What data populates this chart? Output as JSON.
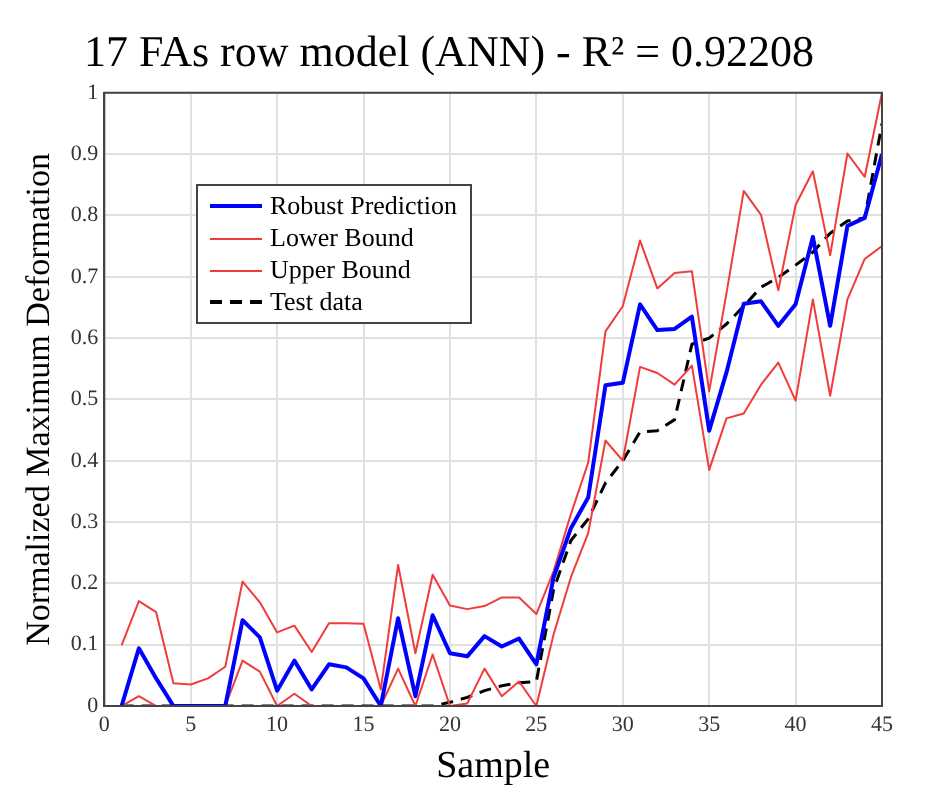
{
  "chart_data": {
    "type": "line",
    "title": "17 FAs row model (ANN) - R² = 0.92208",
    "xlabel": "Sample",
    "ylabel": "Normalized Maximum Deformation",
    "x": [
      1,
      2,
      3,
      4,
      5,
      6,
      7,
      8,
      9,
      10,
      11,
      12,
      13,
      14,
      15,
      16,
      17,
      18,
      19,
      20,
      21,
      22,
      23,
      24,
      25,
      26,
      27,
      28,
      29,
      30,
      31,
      32,
      33,
      34,
      35,
      36,
      37,
      38,
      39,
      40,
      41,
      42,
      43,
      44,
      45
    ],
    "series": [
      {
        "name": "Robust Prediction",
        "color": "#0000ff",
        "line_style": "solid",
        "values": [
          0,
          0.094,
          0.045,
          0,
          0,
          0,
          0,
          0.14,
          0.112,
          0.025,
          0.074,
          0.027,
          0.068,
          0.063,
          0.045,
          0,
          0.143,
          0.016,
          0.148,
          0.086,
          0.081,
          0.114,
          0.097,
          0.11,
          0.068,
          0.21,
          0.29,
          0.34,
          0.523,
          0.527,
          0.655,
          0.613,
          0.615,
          0.635,
          0.449,
          0.544,
          0.656,
          0.66,
          0.62,
          0.655,
          0.765,
          0.62,
          0.783,
          0.796,
          0.9
        ]
      },
      {
        "name": "Lower Bound",
        "color": "#f03c3c",
        "line_style": "solid",
        "values": [
          0,
          0.016,
          0,
          0,
          0,
          0,
          0,
          0.074,
          0.056,
          0,
          0.02,
          0,
          null,
          null,
          null,
          0,
          0.061,
          0,
          0.084,
          0,
          0.004,
          0.061,
          0.016,
          0.04,
          0,
          0.117,
          0.21,
          0.282,
          0.433,
          0.4,
          0.553,
          0.543,
          0.524,
          0.555,
          0.385,
          0.469,
          0.477,
          0.524,
          0.56,
          0.498,
          0.663,
          0.506,
          0.663,
          0.729,
          0.75
        ]
      },
      {
        "name": "Upper Bound",
        "color": "#f03c3c",
        "line_style": "solid",
        "values": [
          0.099,
          0.171,
          0.153,
          0.037,
          0.035,
          0.045,
          0.064,
          0.203,
          0.169,
          0.12,
          0.131,
          0.088,
          0.135,
          0.135,
          0.134,
          0.027,
          0.23,
          0.086,
          0.214,
          0.164,
          0.158,
          0.163,
          0.177,
          0.177,
          0.15,
          0.22,
          0.313,
          0.397,
          0.611,
          0.652,
          0.759,
          0.681,
          0.706,
          0.709,
          0.513,
          0.673,
          0.84,
          0.801,
          0.678,
          0.817,
          0.872,
          0.735,
          0.901,
          0.863,
          1.0
        ]
      },
      {
        "name": "Test data",
        "color": "#000000",
        "line_style": "dashed",
        "values": [
          0,
          0,
          0,
          0,
          0,
          0,
          0,
          0,
          0,
          0,
          0,
          0,
          0,
          0,
          0,
          0,
          0,
          0,
          0,
          0.006,
          0.014,
          0.025,
          0.033,
          0.038,
          0.04,
          0.19,
          0.27,
          0.305,
          0.364,
          0.4,
          0.447,
          0.449,
          0.467,
          0.59,
          0.6,
          0.623,
          0.652,
          0.683,
          0.699,
          0.719,
          0.74,
          0.771,
          0.791,
          0.796,
          0.95
        ]
      }
    ],
    "xlim": [
      0,
      45
    ],
    "xticks": [
      0,
      5,
      10,
      15,
      20,
      25,
      30,
      35,
      40,
      45
    ],
    "ylim": [
      0,
      1
    ],
    "yticks": [
      0,
      0.1,
      0.2,
      0.3,
      0.4,
      0.5,
      0.6,
      0.7,
      0.8,
      0.9,
      1
    ],
    "grid": true,
    "legend": "top left",
    "marker": "none"
  }
}
